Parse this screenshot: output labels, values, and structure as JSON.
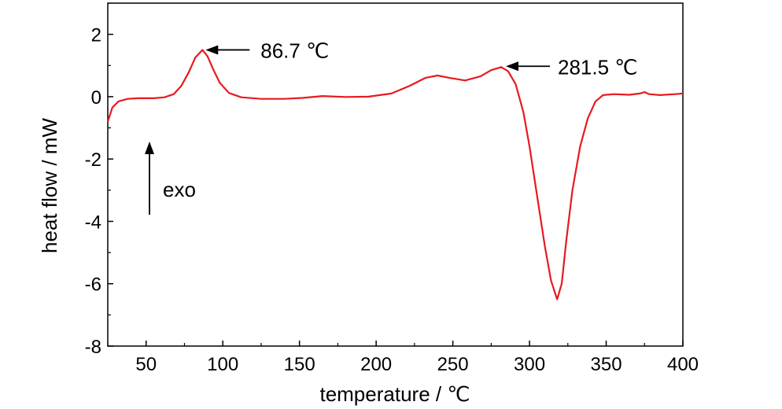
{
  "chart_data": {
    "type": "line",
    "title": "",
    "xlabel": "temperature / ℃",
    "ylabel": "heat flow / mW",
    "xlim": [
      25,
      400
    ],
    "ylim": [
      -8,
      3
    ],
    "x_ticks": [
      50,
      100,
      150,
      200,
      250,
      300,
      350,
      400
    ],
    "y_ticks": [
      2,
      0,
      -2,
      -4,
      -6,
      -8
    ],
    "grid": false,
    "legend": "none",
    "series": [
      {
        "color": "#e8191f",
        "points": [
          [
            25,
            -0.8
          ],
          [
            28,
            -0.35
          ],
          [
            32,
            -0.15
          ],
          [
            38,
            -0.07
          ],
          [
            45,
            -0.05
          ],
          [
            55,
            -0.05
          ],
          [
            62,
            -0.02
          ],
          [
            68,
            0.08
          ],
          [
            73,
            0.35
          ],
          [
            78,
            0.8
          ],
          [
            82,
            1.25
          ],
          [
            86.7,
            1.5
          ],
          [
            90,
            1.3
          ],
          [
            94,
            0.85
          ],
          [
            98,
            0.45
          ],
          [
            104,
            0.12
          ],
          [
            112,
            -0.02
          ],
          [
            125,
            -0.07
          ],
          [
            140,
            -0.07
          ],
          [
            152,
            -0.04
          ],
          [
            165,
            0.02
          ],
          [
            180,
            -0.01
          ],
          [
            195,
            0.0
          ],
          [
            210,
            0.1
          ],
          [
            222,
            0.35
          ],
          [
            232,
            0.6
          ],
          [
            240,
            0.68
          ],
          [
            248,
            0.6
          ],
          [
            258,
            0.52
          ],
          [
            268,
            0.65
          ],
          [
            275,
            0.85
          ],
          [
            281.5,
            0.95
          ],
          [
            286,
            0.82
          ],
          [
            291,
            0.4
          ],
          [
            296,
            -0.5
          ],
          [
            300,
            -1.6
          ],
          [
            305,
            -3.2
          ],
          [
            310,
            -4.8
          ],
          [
            314,
            -5.9
          ],
          [
            318,
            -6.5
          ],
          [
            321,
            -6.0
          ],
          [
            324,
            -4.6
          ],
          [
            328,
            -3.0
          ],
          [
            333,
            -1.6
          ],
          [
            338,
            -0.7
          ],
          [
            343,
            -0.15
          ],
          [
            348,
            0.05
          ],
          [
            355,
            0.08
          ],
          [
            365,
            0.06
          ],
          [
            372,
            0.1
          ],
          [
            375,
            0.15
          ],
          [
            378,
            0.08
          ],
          [
            385,
            0.05
          ],
          [
            395,
            0.08
          ],
          [
            400,
            0.1
          ]
        ]
      }
    ],
    "annotations": [
      {
        "text": "86.7 ℃",
        "x": 86.7,
        "y": 1.5
      },
      {
        "text": "281.5 ℃",
        "x": 281.5,
        "y": 0.95
      },
      {
        "text": "exo",
        "direction": "up"
      }
    ]
  }
}
